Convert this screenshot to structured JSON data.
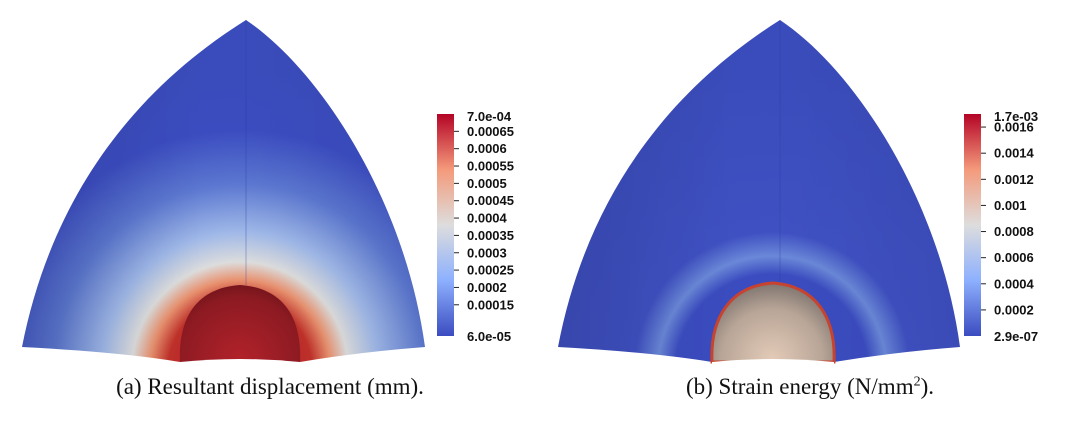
{
  "chart_data": [
    {
      "type": "heatmap",
      "title": "",
      "caption": "(a) Resultant displacement (mm).",
      "colorbar": {
        "min": 6e-05,
        "max": 0.0007,
        "min_label": "6.0e-05",
        "max_label": "7.0e-04",
        "ticks": [
          0.00065,
          0.0006,
          0.00055,
          0.0005,
          0.00045,
          0.0004,
          0.00035,
          0.0003,
          0.00025,
          0.0002,
          0.00015
        ],
        "tick_labels": [
          "0.00065",
          "0.0006",
          "0.00055",
          "0.0005",
          "0.00045",
          "0.0004",
          "0.00035",
          "0.0003",
          "0.00025",
          "0.0002",
          "0.00015"
        ],
        "colormap": [
          "#3b4cc0",
          "#dddddd",
          "#b40426"
        ]
      }
    },
    {
      "type": "heatmap",
      "title": "",
      "caption_prefix": "(b) Strain energy (N/mm",
      "caption_sup": "2",
      "caption_suffix": ").",
      "colorbar": {
        "min": 2.9e-07,
        "max": 0.0017,
        "min_label": "2.9e-07",
        "max_label": "1.7e-03",
        "ticks": [
          0.0016,
          0.0014,
          0.0012,
          0.001,
          0.0008,
          0.0006,
          0.0004,
          0.0002
        ],
        "tick_labels": [
          "0.0016",
          "0.0014",
          "0.0012",
          "0.001",
          "0.0008",
          "0.0006",
          "0.0004",
          "0.0002"
        ],
        "colormap": [
          "#3b4cc0",
          "#dddddd",
          "#b40426"
        ]
      }
    }
  ]
}
